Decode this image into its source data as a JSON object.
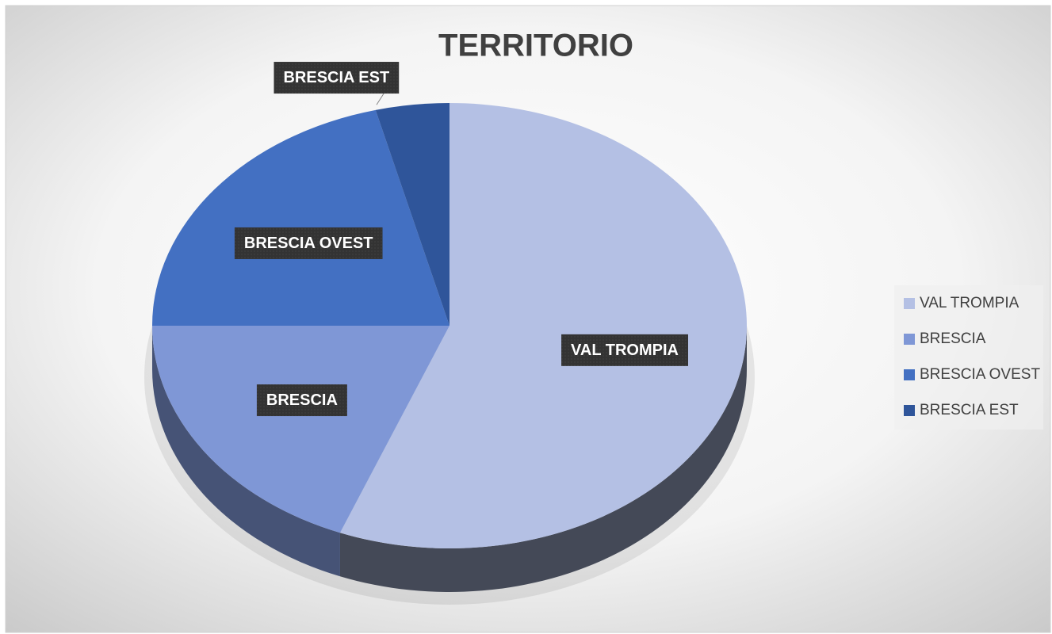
{
  "chart_data": {
    "type": "pie",
    "title": "TERRITORIO",
    "categories": [
      "VAL TROMPIA",
      "BRESCIA",
      "BRESCIA OVEST",
      "BRESCIA EST"
    ],
    "values": [
      56,
      19,
      21,
      4
    ],
    "colors": [
      "#b4c0e4",
      "#7f97d6",
      "#4370c2",
      "#2f559a"
    ],
    "legend": "right"
  }
}
